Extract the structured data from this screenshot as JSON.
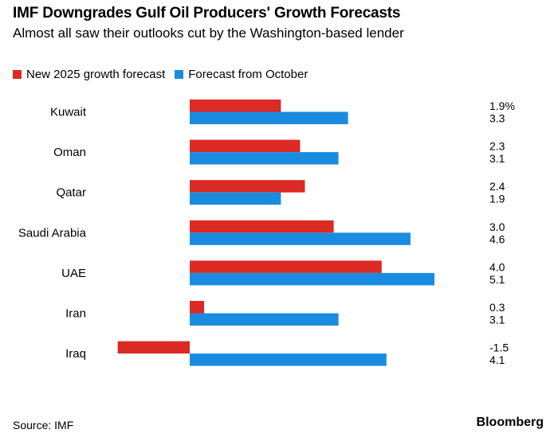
{
  "title": "IMF Downgrades Gulf Oil Producers' Growth Forecasts",
  "subtitle": "Almost all saw their outlooks cut by the Washington-based lender",
  "source": "Source: IMF",
  "brand": "Bloomberg",
  "chart_data": {
    "type": "bar",
    "orientation": "horizontal",
    "categories": [
      "Kuwait",
      "Oman",
      "Qatar",
      "Saudi Arabia",
      "UAE",
      "Iran",
      "Iraq"
    ],
    "series": [
      {
        "name": "New 2025 growth forecast",
        "color": "#dc2a25",
        "values": [
          1.9,
          2.3,
          2.4,
          3.0,
          4.0,
          0.3,
          -1.5
        ]
      },
      {
        "name": "Forecast from October",
        "color": "#1a8ce0",
        "values": [
          3.3,
          3.1,
          1.9,
          4.6,
          5.1,
          3.1,
          4.1
        ]
      }
    ],
    "value_labels": [
      [
        "1.9%",
        "3.3"
      ],
      [
        "2.3",
        "3.1"
      ],
      [
        "2.4",
        "1.9"
      ],
      [
        "3.0",
        "4.6"
      ],
      [
        "4.0",
        "5.1"
      ],
      [
        "0.3",
        "3.1"
      ],
      [
        "-1.5",
        "4.1"
      ]
    ],
    "unit": "%"
  }
}
